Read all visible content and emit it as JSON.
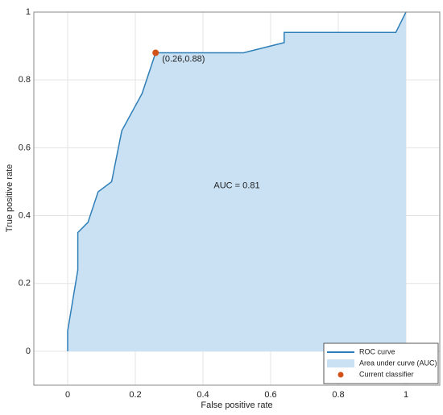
{
  "chart_data": {
    "type": "roc",
    "xlabel": "False positive rate",
    "ylabel": "True positive rate",
    "annotation": "AUC = 0.81",
    "xlim": [
      -0.1,
      1.1
    ],
    "ylim": [
      -0.1,
      1
    ],
    "xticks": [
      0,
      0.2,
      0.4,
      0.6,
      0.8,
      1
    ],
    "yticks": [
      0,
      0.2,
      0.4,
      0.6,
      0.8,
      1
    ],
    "grid": true,
    "legend": "southeast",
    "series": [
      {
        "name": "ROC curve",
        "color": "#2f7fb8",
        "x": [
          0,
          0,
          0.03,
          0.03,
          0.06,
          0.09,
          0.13,
          0.16,
          0.22,
          0.26,
          0.52,
          0.64,
          0.64,
          0.97,
          1
        ],
        "y": [
          0,
          0.06,
          0.24,
          0.35,
          0.38,
          0.47,
          0.5,
          0.65,
          0.76,
          0.88,
          0.88,
          0.91,
          0.94,
          0.94,
          1
        ]
      }
    ],
    "area": {
      "name": "Area under curve (AUC)",
      "color": "#c9e1f3"
    },
    "points": [
      {
        "name": "Current classifier",
        "color": "#d2531a",
        "x": [
          0.26
        ],
        "y": [
          0.88
        ],
        "labels": [
          "(0.26,0.88)"
        ]
      }
    ]
  }
}
